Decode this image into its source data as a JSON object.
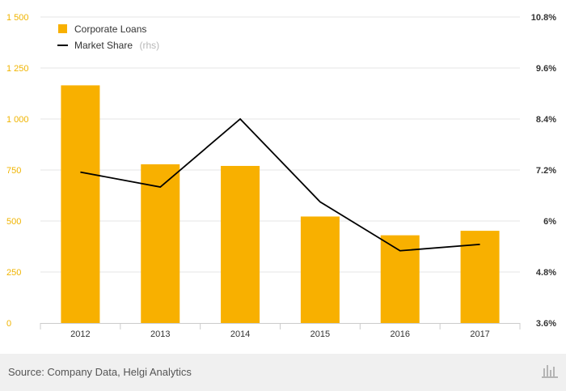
{
  "chart_data": {
    "type": "bar",
    "categories": [
      "2012",
      "2013",
      "2014",
      "2015",
      "2016",
      "2017"
    ],
    "series": [
      {
        "name": "Corporate Loans",
        "type": "bar",
        "axis": "left",
        "color": "#f8b000",
        "values": [
          1165,
          778,
          770,
          522,
          430,
          452
        ]
      },
      {
        "name": "Market Share",
        "name_suffix": "(rhs)",
        "type": "line",
        "axis": "right",
        "color": "#000000",
        "values": [
          7.15,
          6.8,
          8.4,
          6.45,
          5.3,
          5.45
        ]
      }
    ],
    "y_left": {
      "min": 0,
      "max": 1500,
      "ticks": [
        0,
        250,
        500,
        750,
        1000,
        1250,
        1500
      ],
      "tick_labels": [
        "0",
        "250",
        "500",
        "750",
        "1 000",
        "1 250",
        "1 500"
      ],
      "color": "#f0b400"
    },
    "y_right": {
      "min": 3.6,
      "max": 10.8,
      "ticks": [
        3.6,
        4.8,
        6,
        7.2,
        8.4,
        9.6,
        10.8
      ],
      "tick_labels": [
        "3.6%",
        "4.8%",
        "6%",
        "7.2%",
        "8.4%",
        "9.6%",
        "10.8%"
      ]
    },
    "grid": true,
    "legend": "top-left"
  },
  "footer": {
    "source": "Source: Company Data, Helgi Analytics",
    "logo": "HelgiLibrary"
  }
}
